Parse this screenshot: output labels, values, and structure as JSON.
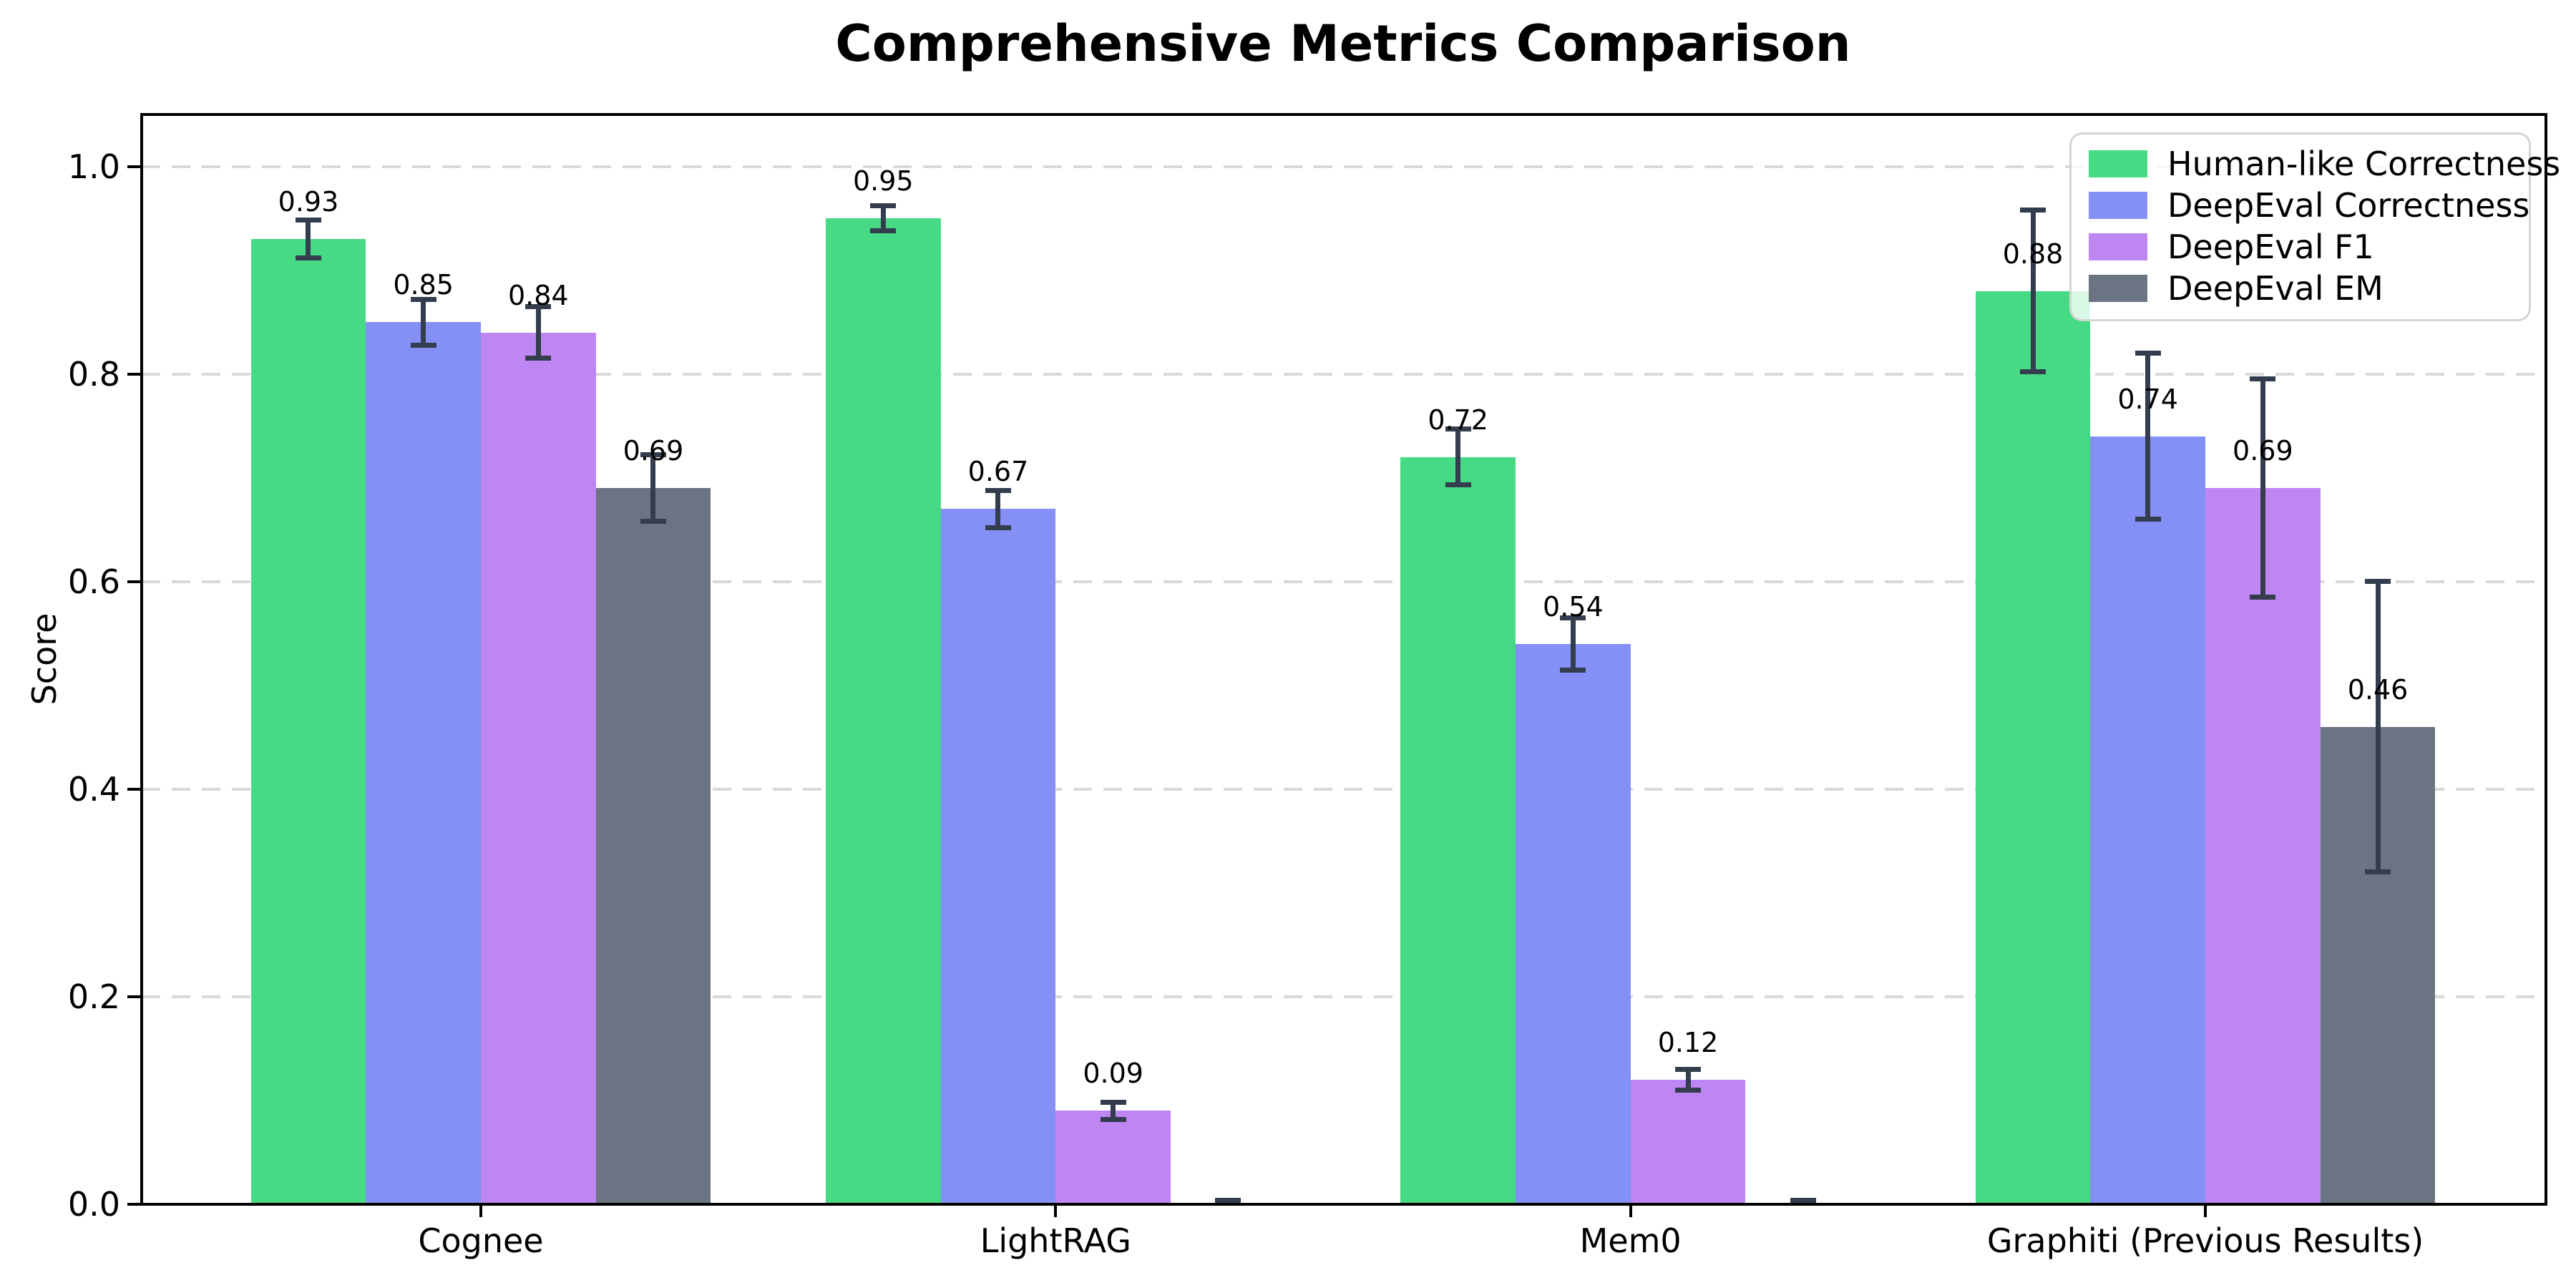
{
  "chart_data": {
    "type": "bar",
    "title": "Comprehensive Metrics Comparison",
    "ylabel": "Score",
    "categories": [
      "Cognee",
      "LightRAG",
      "Mem0",
      "Graphiti (Previous Results)"
    ],
    "series": [
      {
        "name": "Human-like Correctness",
        "color": "#47da84",
        "values": [
          0.93,
          0.95,
          0.72,
          0.88
        ],
        "errors": [
          0.018,
          0.012,
          0.027,
          0.078
        ],
        "labels": [
          "0.93",
          "0.95",
          "0.72",
          "0.88"
        ]
      },
      {
        "name": "DeepEval Correctness",
        "color": "#8490f5",
        "values": [
          0.85,
          0.67,
          0.54,
          0.74
        ],
        "errors": [
          0.022,
          0.018,
          0.025,
          0.08
        ],
        "labels": [
          "0.85",
          "0.67",
          "0.54",
          "0.74"
        ]
      },
      {
        "name": "DeepEval F1",
        "color": "#bd86f3",
        "values": [
          0.84,
          0.09,
          0.12,
          0.69
        ],
        "errors": [
          0.025,
          0.008,
          0.01,
          0.105
        ],
        "labels": [
          "0.84",
          "0.09",
          "0.12",
          "0.69"
        ]
      },
      {
        "name": "DeepEval EM",
        "color": "#6b7482",
        "values": [
          0.69,
          0.0,
          0.0,
          0.46
        ],
        "errors": [
          0.032,
          0.004,
          0.004,
          0.14
        ],
        "labels": [
          "0.69",
          "",
          "",
          "0.46"
        ]
      }
    ],
    "yticks": [
      "0.0",
      "0.2",
      "0.4",
      "0.6",
      "0.8",
      "1.0"
    ],
    "ylim": [
      0,
      1.05
    ],
    "grid": {
      "axis": "y",
      "style": "dashed",
      "color": "#d9d9d9"
    },
    "legend": {
      "position": "upper right"
    },
    "error_bar_color": "#333d4d",
    "axis_color": "#000000"
  }
}
